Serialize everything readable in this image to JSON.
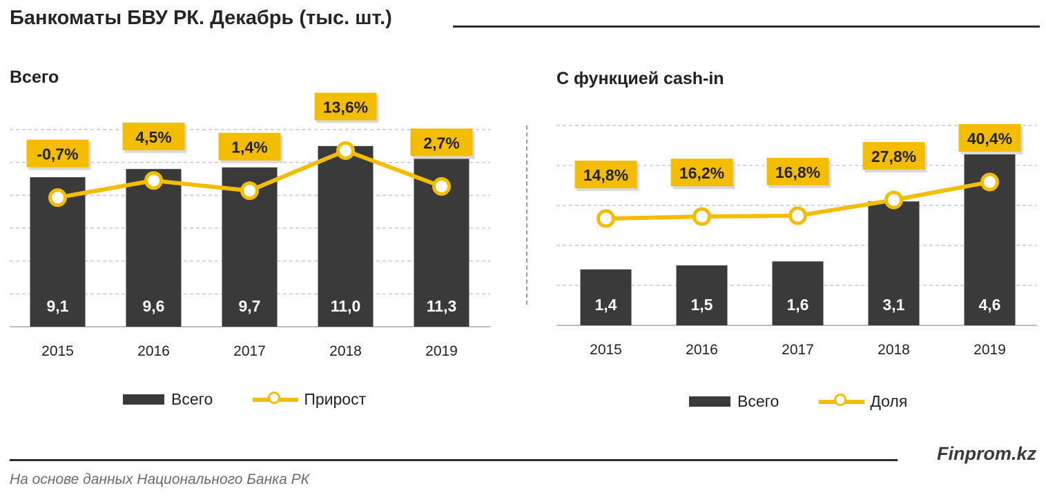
{
  "header": {
    "title": "Банкоматы БВУ РК. Декабрь (тыс. шт.)"
  },
  "chart_data": [
    {
      "type": "bar",
      "title": "Всего",
      "categories": [
        "2015",
        "2016",
        "2017",
        "2018",
        "2019"
      ],
      "series": [
        {
          "name": "Всего",
          "kind": "bar",
          "values": [
            9.1,
            9.6,
            9.7,
            11.0,
            11.3
          ],
          "labels": [
            "9,1",
            "9,6",
            "9,7",
            "11,0",
            "11,3"
          ]
        },
        {
          "name": "Прирост",
          "kind": "line",
          "values": [
            -0.7,
            4.5,
            1.4,
            13.6,
            2.7
          ],
          "labels": [
            "-0,7%",
            "4,5%",
            "1,4%",
            "13,6%",
            "2,7%"
          ]
        }
      ],
      "ylim": [
        0,
        12
      ],
      "y2lim": [
        -40,
        20
      ],
      "grid": true,
      "legend": "bottom"
    },
    {
      "type": "bar",
      "title": "С функцией  cash-in",
      "categories": [
        "2015",
        "2016",
        "2017",
        "2018",
        "2019"
      ],
      "series": [
        {
          "name": "Всего",
          "kind": "bar",
          "values": [
            1.4,
            1.5,
            1.6,
            3.1,
            4.6
          ],
          "labels": [
            "1,4",
            "1,5",
            "1,6",
            "3,1",
            "4,6"
          ]
        },
        {
          "name": "Доля",
          "kind": "line",
          "values": [
            14.8,
            16.2,
            16.8,
            27.8,
            40.4
          ],
          "labels": [
            "14,8%",
            "16,2%",
            "16,8%",
            "27,8%",
            "40,4%"
          ]
        }
      ],
      "ylim": [
        0,
        5
      ],
      "y2lim": [
        -60,
        80
      ],
      "grid": true,
      "legend": "bottom"
    }
  ],
  "colors": {
    "bar": "#3a3a3a",
    "line": "#f5bd00",
    "label_bg": "#f5bd00",
    "grid": "#c8c8c8"
  },
  "footer": {
    "brand": "Finprom.kz",
    "source": "На основе данных  Национального  Банка РК"
  }
}
